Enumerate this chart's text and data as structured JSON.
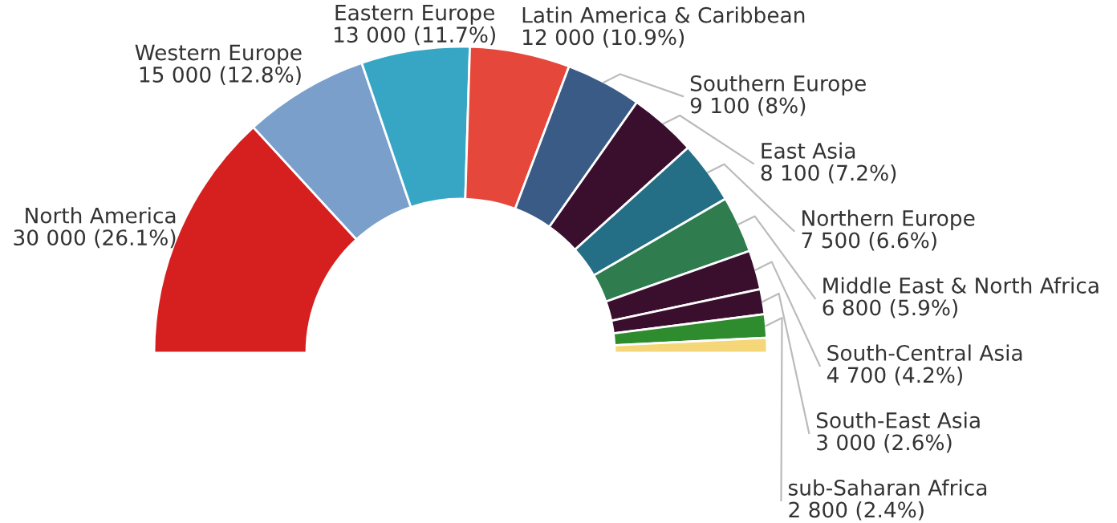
{
  "chart_data": {
    "type": "donut",
    "categories": [
      "North America",
      "Western Europe",
      "Eastern Europe",
      "Latin America & Caribbean",
      "Southern Europe",
      "East Asia",
      "Northern Europe",
      "Middle East & North Africa",
      "South-Central Asia",
      "South-East Asia",
      "sub-Saharan Africa",
      null
    ],
    "values": [
      30000,
      15000,
      13000,
      12000,
      9100,
      8100,
      7500,
      6800,
      4700,
      3000,
      2800,
      1800
    ],
    "value_labels": [
      "30 000 (26.1%)",
      "15 000 (12.8%)",
      "13 000 (11.7%)",
      "12 000 (10.9%)",
      "9 100 (8%)",
      "8 100 (7.2%)",
      "7 500 (6.6%)",
      "6 800 (5.9%)",
      "4 700 (4.2%)",
      "3 000 (2.6%)",
      "2 800 (2.4%)",
      null
    ],
    "colors": [
      "#d62020",
      "#7a9fcb",
      "#36a6c4",
      "#e5473b",
      "#3b5b87",
      "#3a0f2e",
      "#246f85",
      "#2f7d4f",
      "#3a0f2e",
      "#3a0f2e",
      "#2e8b2e",
      "#f5d77a"
    ]
  }
}
